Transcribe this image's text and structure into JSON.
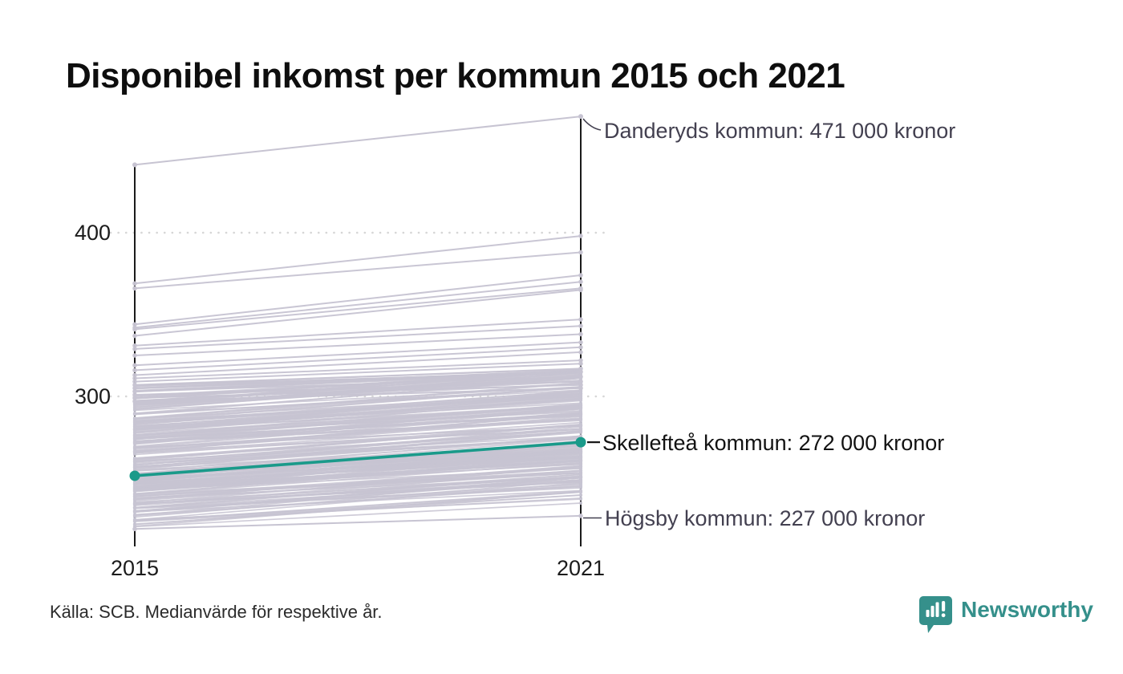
{
  "title": "Disponibel inkomst per kommun 2015 och 2021",
  "source": "Källa: SCB. Medianvärde för respektive år.",
  "logo": {
    "text": "Newsworthy",
    "color": "#35908b"
  },
  "chart_data": {
    "type": "line",
    "chart_subtype": "slopegraph",
    "title": "Disponibel inkomst per kommun 2015 och 2021",
    "x": [
      2015,
      2021
    ],
    "x_tick_labels": [
      "2015",
      "2021"
    ],
    "y_tick_labels": [
      "400",
      "300"
    ],
    "yticks": [
      400,
      300
    ],
    "ylim": [
      207,
      480
    ],
    "unit": "tusen kronor",
    "grid": "dotted horizontal gridlines at 300 and 400",
    "legend": "none",
    "annotations": [
      {
        "label": "Danderyds kommun: 471 000 kronor",
        "series": "Danderyds kommun",
        "year": 2021,
        "value": 471
      },
      {
        "label": "Skellefteå kommun: 272 000 kronor",
        "series": "Skellefteå kommun",
        "year": 2021,
        "value": 272,
        "highlighted": true
      },
      {
        "label": "Högsby kommun: 227 000 kronor",
        "series": "Högsby kommun",
        "year": 2021,
        "value": 227
      }
    ],
    "series": [
      {
        "name": "Danderyds kommun",
        "values": [
          441.5,
          471
        ],
        "style": "background-labeled"
      },
      {
        "name": "Skellefteå kommun",
        "values": [
          251.5,
          272
        ],
        "style": "highlight",
        "color": "#1a9a8a"
      },
      {
        "name": "Högsby kommun",
        "values": [
          219,
          227
        ],
        "style": "background-labeled"
      }
    ],
    "background_municipalities": {
      "description": "approx. 290 Swedish municipalities drawn as thin light-grey slope lines; individual values estimated from pixel positions",
      "upper_lines": [
        [
          369,
          398
        ],
        [
          366,
          388
        ],
        [
          344,
          374
        ],
        [
          342,
          370
        ],
        [
          341,
          366
        ],
        [
          337,
          365
        ],
        [
          331,
          347
        ],
        [
          329,
          343
        ],
        [
          325,
          338
        ],
        [
          319,
          333
        ],
        [
          316,
          330
        ],
        [
          313,
          327
        ],
        [
          311,
          322
        ],
        [
          309,
          320
        ],
        [
          307,
          317
        ],
        [
          305,
          315
        ],
        [
          303,
          312
        ],
        [
          301,
          309
        ],
        [
          299,
          307
        ],
        [
          297,
          305
        ]
      ],
      "band": {
        "count": 245,
        "v2015_range": [
          219,
          308
        ],
        "v2021_range": [
          228,
          317
        ],
        "growth_range": [
          12,
          24
        ],
        "seed": 7
      }
    },
    "colors": {
      "background_line": "#c7c4d2",
      "highlight_line": "#1a9a8a",
      "axis": "#1a1a1a",
      "gridline": "#d6d6d6",
      "annotation_muted": "#434050",
      "annotation_highlight": "#121212"
    }
  }
}
